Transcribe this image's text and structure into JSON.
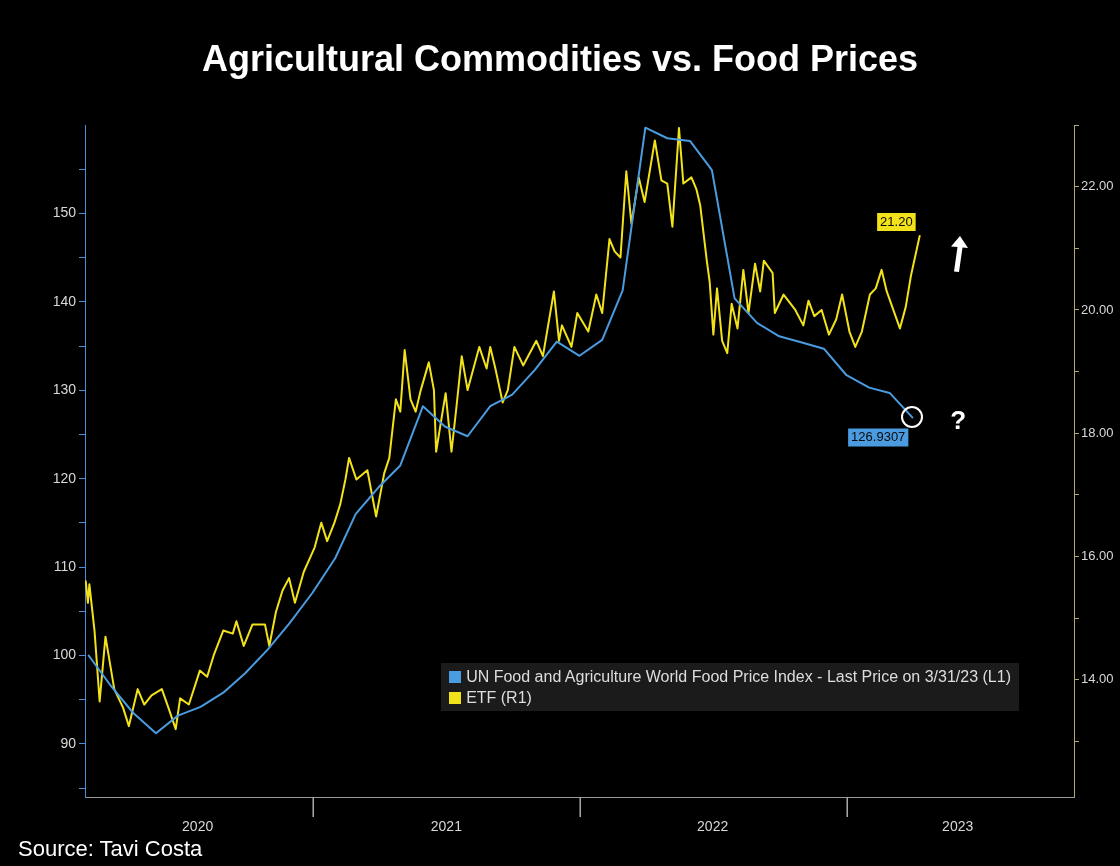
{
  "chart_data": {
    "type": "line",
    "title": "Agricultural Commodities vs. Food Prices",
    "legend": "bottom",
    "marker": "none",
    "xlim": [
      "2020-02-24",
      "2023-11-07"
    ],
    "xticks": [
      {
        "value": "2020-07-27",
        "label": "2020"
      },
      {
        "value": "2021-07-02",
        "label": "2021"
      },
      {
        "value": "2022-07-01",
        "label": "2022"
      },
      {
        "value": "2023-06-01",
        "label": "2023"
      }
    ],
    "ylim": [
      84,
      160
    ],
    "yticks": [
      {
        "value": 85,
        "label": null
      },
      90,
      {
        "value": 95,
        "label": null
      },
      100,
      {
        "value": 105,
        "label": null
      },
      110,
      {
        "value": 115,
        "label": null
      },
      120,
      {
        "value": 125,
        "label": null
      },
      130,
      {
        "value": 135,
        "label": null
      },
      140,
      {
        "value": 145,
        "label": null
      },
      150,
      {
        "value": 155,
        "label": null
      }
    ],
    "y2lim": [
      12.1,
      23.0
    ],
    "y2ticks": [
      {
        "value": 13,
        "label": null
      },
      {
        "value": 14,
        "label": "14.00"
      },
      {
        "value": 15,
        "label": null
      },
      {
        "value": 16,
        "label": "16.00"
      },
      {
        "value": 17,
        "label": null
      },
      {
        "value": 18,
        "label": "18.00"
      },
      {
        "value": 19,
        "label": null
      },
      {
        "value": 20,
        "label": "20.00"
      },
      {
        "value": 21,
        "label": null
      },
      {
        "value": 22,
        "label": "22.00"
      },
      {
        "value": 23,
        "label": null
      }
    ],
    "series": [
      {
        "name": "UN Food and Agriculture World Food Price Index - Last Price on 3/31/23 (L1)",
        "color": "#4a9be0",
        "axis": "y",
        "x": [
          "2020-02-29",
          "2020-03-31",
          "2020-04-30",
          "2020-05-31",
          "2020-06-30",
          "2020-07-31",
          "2020-08-31",
          "2020-09-30",
          "2020-10-31",
          "2020-11-30",
          "2020-12-31",
          "2021-01-31",
          "2021-02-28",
          "2021-03-31",
          "2021-04-30",
          "2021-05-31",
          "2021-06-30",
          "2021-07-31",
          "2021-08-31",
          "2021-09-30",
          "2021-10-31",
          "2021-11-30",
          "2021-12-31",
          "2022-01-31",
          "2022-02-28",
          "2022-03-31",
          "2022-04-30",
          "2022-05-31",
          "2022-06-30",
          "2022-07-31",
          "2022-08-31",
          "2022-09-30",
          "2022-10-31",
          "2022-11-30",
          "2022-12-31",
          "2023-01-31",
          "2023-02-28",
          "2023-03-31"
        ],
        "values": [
          100,
          96.5,
          93.5,
          91.2,
          93.2,
          94.2,
          95.8,
          98.0,
          100.7,
          103.7,
          107.1,
          111,
          116,
          119,
          121.5,
          128.2,
          125.9,
          124.8,
          128.2,
          129.5,
          132.3,
          135.5,
          133.9,
          135.7,
          141.3,
          159.7,
          158.5,
          158.2,
          154.9,
          140.4,
          137.6,
          136.1,
          135.4,
          134.7,
          131.7,
          130.3,
          129.7,
          126.9307
        ],
        "value_labels": [
          null,
          null,
          null,
          null,
          null,
          null,
          null,
          null,
          null,
          null,
          null,
          null,
          null,
          null,
          null,
          null,
          null,
          null,
          null,
          null,
          null,
          null,
          null,
          null,
          null,
          null,
          null,
          null,
          null,
          null,
          null,
          null,
          null,
          null,
          null,
          null,
          null,
          "126.9307"
        ]
      },
      {
        "name": "ETF (R1)",
        "color": "#f2e21a",
        "axis": "y2",
        "x": [
          "2020-02-25",
          "2020-02-28",
          "2020-03-01",
          "2020-03-08",
          "2020-03-15",
          "2020-03-23",
          "2020-04-04",
          "2020-04-16",
          "2020-04-24",
          "2020-05-06",
          "2020-05-15",
          "2020-05-25",
          "2020-06-08",
          "2020-06-17",
          "2020-06-27",
          "2020-07-03",
          "2020-07-15",
          "2020-07-30",
          "2020-08-09",
          "2020-08-18",
          "2020-08-31",
          "2020-09-13",
          "2020-09-18",
          "2020-09-28",
          "2020-10-10",
          "2020-10-27",
          "2020-11-02",
          "2020-11-11",
          "2020-11-20",
          "2020-11-29",
          "2020-12-07",
          "2020-12-19",
          "2021-01-03",
          "2021-01-12",
          "2021-01-20",
          "2021-01-30",
          "2021-02-07",
          "2021-02-14",
          "2021-02-19",
          "2021-03-01",
          "2021-03-16",
          "2021-03-28",
          "2021-04-08",
          "2021-04-15",
          "2021-04-24",
          "2021-04-30",
          "2021-05-06",
          "2021-05-14",
          "2021-05-21",
          "2021-05-28",
          "2021-06-08",
          "2021-06-15",
          "2021-06-18",
          "2021-07-01",
          "2021-07-09",
          "2021-07-16",
          "2021-07-23",
          "2021-07-31",
          "2021-08-16",
          "2021-08-26",
          "2021-08-31",
          "2021-09-07",
          "2021-09-17",
          "2021-09-24",
          "2021-10-03",
          "2021-10-15",
          "2021-11-02",
          "2021-11-11",
          "2021-11-26",
          "2021-12-03",
          "2021-12-07",
          "2021-12-20",
          "2021-12-28",
          "2022-01-12",
          "2022-01-23",
          "2022-01-31",
          "2022-02-10",
          "2022-02-17",
          "2022-02-25",
          "2022-03-05",
          "2022-03-12",
          "2022-03-22",
          "2022-03-30",
          "2022-04-13",
          "2022-04-22",
          "2022-04-30",
          "2022-05-07",
          "2022-05-16",
          "2022-05-22",
          "2022-06-02",
          "2022-06-09",
          "2022-06-14",
          "2022-06-23",
          "2022-06-27",
          "2022-07-02",
          "2022-07-07",
          "2022-07-14",
          "2022-07-21",
          "2022-07-27",
          "2022-08-04",
          "2022-08-12",
          "2022-08-19",
          "2022-08-28",
          "2022-09-04",
          "2022-09-09",
          "2022-09-21",
          "2022-09-24",
          "2022-10-06",
          "2022-10-22",
          "2022-11-02",
          "2022-11-09",
          "2022-11-17",
          "2022-11-27",
          "2022-12-07",
          "2022-12-17",
          "2022-12-25",
          "2023-01-04",
          "2023-01-12",
          "2023-01-21",
          "2023-02-01",
          "2023-02-09",
          "2023-02-17",
          "2023-02-24",
          "2023-03-05",
          "2023-03-14",
          "2023-03-22",
          "2023-03-29",
          "2023-04-10"
        ],
        "values": [
          15.6,
          15.25,
          15.55,
          14.8,
          13.65,
          14.7,
          13.85,
          13.55,
          13.25,
          13.85,
          13.6,
          13.75,
          13.85,
          13.55,
          13.2,
          13.7,
          13.6,
          14.15,
          14.05,
          14.4,
          14.8,
          14.75,
          14.95,
          14.55,
          14.9,
          14.9,
          14.55,
          15.1,
          15.45,
          15.65,
          15.25,
          15.75,
          16.15,
          16.55,
          16.25,
          16.55,
          16.85,
          17.25,
          17.6,
          17.25,
          17.4,
          16.65,
          17.35,
          17.6,
          18.55,
          18.35,
          19.35,
          18.55,
          18.35,
          18.7,
          19.15,
          18.7,
          17.7,
          18.65,
          17.7,
          18.45,
          19.25,
          18.7,
          19.4,
          19.05,
          19.4,
          19.05,
          18.5,
          18.7,
          19.4,
          19.1,
          19.5,
          19.25,
          20.3,
          19.5,
          19.75,
          19.4,
          19.95,
          19.65,
          20.25,
          19.95,
          21.15,
          20.95,
          20.85,
          22.25,
          21.4,
          22.15,
          21.75,
          22.75,
          22.1,
          22.05,
          21.35,
          22.95,
          22.05,
          22.15,
          21.95,
          21.7,
          20.8,
          20.45,
          19.6,
          20.35,
          19.5,
          19.3,
          20.1,
          19.7,
          20.65,
          19.95,
          20.75,
          20.3,
          20.8,
          20.6,
          19.95,
          20.25,
          20.0,
          19.75,
          20.15,
          19.9,
          20.0,
          19.6,
          19.85,
          20.25,
          19.65,
          19.4,
          19.65,
          20.25,
          20.35,
          20.65,
          20.3,
          20.0,
          19.7,
          20.05,
          20.55,
          21.2
        ],
        "value_labels": [
          null,
          null,
          null,
          null,
          null,
          null,
          null,
          null,
          null,
          null,
          null,
          null,
          null,
          null,
          null,
          null,
          null,
          null,
          null,
          null,
          null,
          null,
          null,
          null,
          null,
          null,
          null,
          null,
          null,
          null,
          null,
          null,
          null,
          null,
          null,
          null,
          null,
          null,
          null,
          null,
          null,
          null,
          null,
          null,
          null,
          null,
          null,
          null,
          null,
          null,
          null,
          null,
          null,
          null,
          null,
          null,
          null,
          null,
          null,
          null,
          null,
          null,
          null,
          null,
          null,
          null,
          null,
          null,
          null,
          null,
          null,
          null,
          null,
          null,
          null,
          null,
          null,
          null,
          null,
          null,
          null,
          null,
          null,
          null,
          null,
          null,
          null,
          null,
          null,
          null,
          null,
          null,
          null,
          null,
          null,
          null,
          null,
          null,
          null,
          null,
          null,
          null,
          null,
          null,
          null,
          null,
          null,
          null,
          null,
          null,
          null,
          null,
          null,
          null,
          null,
          null,
          null,
          null,
          null,
          null,
          null,
          null,
          null,
          null,
          null,
          null,
          null,
          "21.20"
        ]
      }
    ],
    "annotations": [
      "Source: Tavi Costa",
      "?"
    ]
  }
}
